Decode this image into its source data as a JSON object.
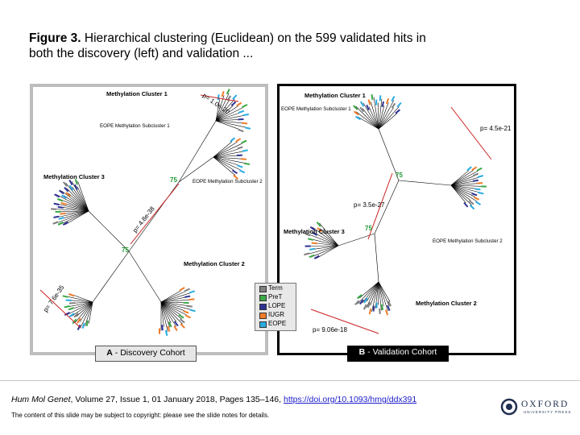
{
  "slide": {
    "title_bold": "Figure 3.",
    "title_rest": " Hierarchical clustering (Euclidean) on the 599 validated hits in both the discovery (left) and validation ..."
  },
  "panelA": {
    "caption_letter": "A",
    "caption_rest": " - Discovery Cohort",
    "cluster1": "Methylation Cluster 1",
    "cluster2": "Methylation Cluster 2",
    "cluster3": "Methylation Cluster 3",
    "sub1": "EOPE Methylation Subcluster 1",
    "sub2": "EOPE Methylation Subcluster 2",
    "p1": "p= 1.0e-20",
    "p2": "p= 4.8e-38",
    "p3": "p= 7.6e-35",
    "bs1": "75",
    "bs2": "75"
  },
  "panelB": {
    "caption_letter": "B",
    "caption_rest": " - Validation Cohort",
    "cluster1": "Methylation Cluster 1",
    "cluster2": "Methylation Cluster 2",
    "cluster3": "Methylation Cluster 3",
    "sub1": "EOPE Methylation Subcluster 1",
    "sub2": "EOPE Methylation Subcluster 2",
    "p1": "p= 4.5e-21",
    "p2": "p= 3.5e-27",
    "p3": "p= 9.06e-18",
    "bs1": "75",
    "bs2": "75"
  },
  "legend": {
    "items": [
      {
        "label": "Term",
        "color": "#7f7f7f"
      },
      {
        "label": "PreT",
        "color": "#3aa845"
      },
      {
        "label": "LOPE",
        "color": "#2e3192"
      },
      {
        "label": "IUGR",
        "color": "#f07c28"
      },
      {
        "label": "EOPE",
        "color": "#29abe2"
      }
    ]
  },
  "colors": {
    "arrow": "#cc2222",
    "bootstrap": "#1e9a33",
    "branch": "#000000"
  },
  "footer": {
    "journal": "Hum Mol Genet",
    "citation": ", Volume 27, Issue 1, 01 January 2018, Pages 135–146, ",
    "doi": "https://doi.org/10.1093/hmg/ddx391",
    "note": "The content of this slide may be subject to copyright: please see the slide notes for details.",
    "publisher": "OXFORD",
    "publisher_sub": "UNIVERSITY PRESS"
  }
}
